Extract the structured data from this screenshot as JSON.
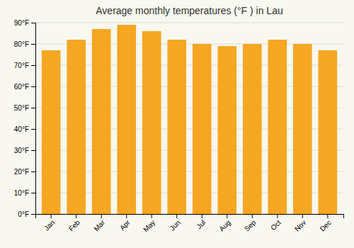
{
  "chart_data": {
    "type": "bar",
    "title": "Average monthly temperatures (°F ) in Lau",
    "categories": [
      "Jan",
      "Feb",
      "Mar",
      "Apr",
      "May",
      "Jun",
      "Jul",
      "Aug",
      "Sep",
      "Oct",
      "Nov",
      "Dec"
    ],
    "values": [
      77,
      82,
      87,
      89,
      86,
      82,
      80,
      79,
      80,
      82,
      80,
      77
    ],
    "color": "#F5A623",
    "ylim": [
      0,
      90
    ],
    "yticks": [
      {
        "value": 0,
        "label": "0°F"
      },
      {
        "value": 10,
        "label": "10°F"
      },
      {
        "value": 20,
        "label": "20°F"
      },
      {
        "value": 30,
        "label": "30°F"
      },
      {
        "value": 40,
        "label": "40°F"
      },
      {
        "value": 50,
        "label": "50°F"
      },
      {
        "value": 60,
        "label": "60°F"
      },
      {
        "value": 70,
        "label": "70°F"
      },
      {
        "value": 80,
        "label": "80°F"
      },
      {
        "value": 90,
        "label": "90°F"
      }
    ],
    "grid": true
  }
}
